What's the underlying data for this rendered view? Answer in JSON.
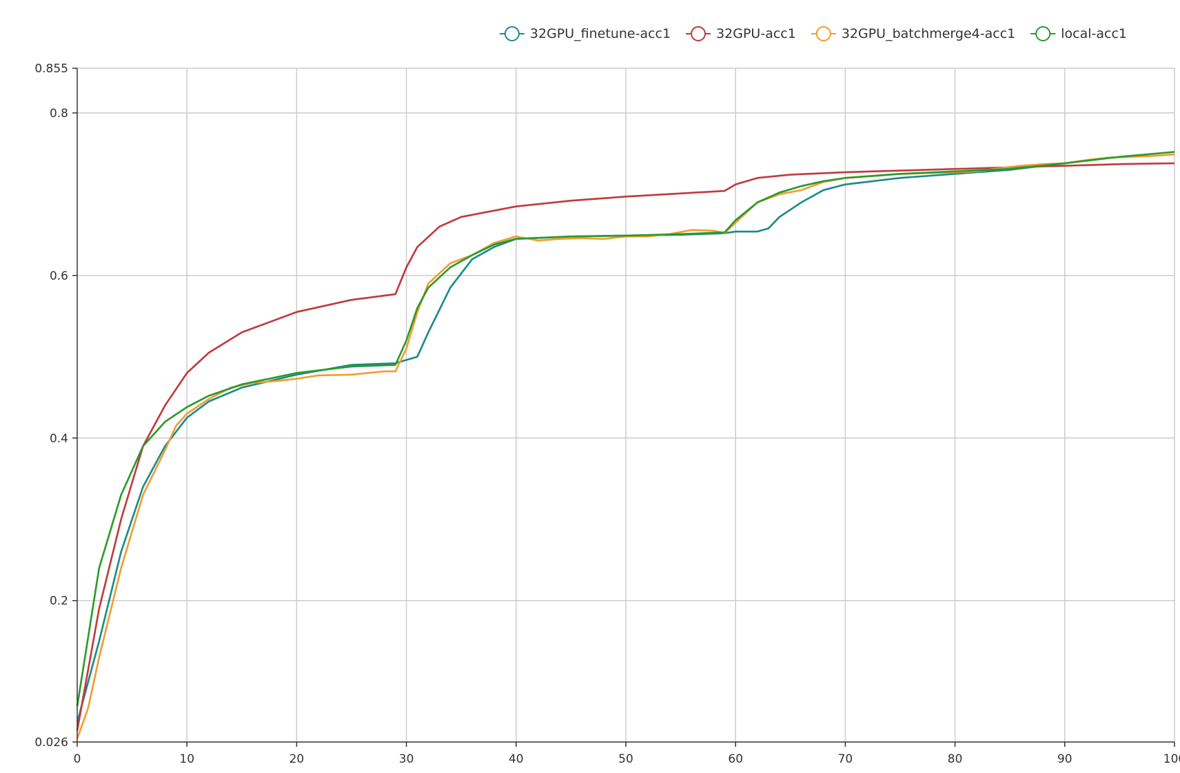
{
  "chart_data": {
    "type": "line",
    "title": "",
    "xlabel": "",
    "ylabel": "",
    "xlim": [
      0,
      100
    ],
    "ylim": [
      0.026,
      0.855
    ],
    "grid": true,
    "legend_position": "top-right",
    "x_ticks": [
      "0",
      "10",
      "20",
      "30",
      "40",
      "50",
      "60",
      "70",
      "80",
      "90",
      "100"
    ],
    "y_ticks": [
      "0.026",
      "0.2",
      "0.4",
      "0.6",
      "0.8",
      "0.855"
    ],
    "series": [
      {
        "name": "32GPU_finetune-acc1",
        "color": "#1a8a8a",
        "points": [
          [
            0,
            0.05
          ],
          [
            2,
            0.15
          ],
          [
            4,
            0.26
          ],
          [
            6,
            0.34
          ],
          [
            8,
            0.39
          ],
          [
            10,
            0.425
          ],
          [
            12,
            0.445
          ],
          [
            15,
            0.462
          ],
          [
            20,
            0.478
          ],
          [
            25,
            0.49
          ],
          [
            29,
            0.492
          ],
          [
            31,
            0.5
          ],
          [
            32,
            0.53
          ],
          [
            34,
            0.585
          ],
          [
            36,
            0.62
          ],
          [
            38,
            0.635
          ],
          [
            40,
            0.645
          ],
          [
            45,
            0.648
          ],
          [
            50,
            0.649
          ],
          [
            55,
            0.65
          ],
          [
            59,
            0.652
          ],
          [
            60,
            0.654
          ],
          [
            62,
            0.654
          ],
          [
            63,
            0.658
          ],
          [
            64,
            0.672
          ],
          [
            66,
            0.69
          ],
          [
            68,
            0.705
          ],
          [
            70,
            0.712
          ],
          [
            75,
            0.72
          ],
          [
            80,
            0.725
          ],
          [
            85,
            0.73
          ],
          [
            88,
            0.735
          ],
          [
            90,
            0.735
          ]
        ]
      },
      {
        "name": "32GPU-acc1",
        "color": "#c0393b",
        "points": [
          [
            0,
            0.04
          ],
          [
            2,
            0.19
          ],
          [
            4,
            0.3
          ],
          [
            6,
            0.39
          ],
          [
            8,
            0.44
          ],
          [
            10,
            0.48
          ],
          [
            12,
            0.505
          ],
          [
            15,
            0.53
          ],
          [
            20,
            0.555
          ],
          [
            25,
            0.57
          ],
          [
            29,
            0.577
          ],
          [
            30,
            0.61
          ],
          [
            31,
            0.635
          ],
          [
            33,
            0.66
          ],
          [
            35,
            0.672
          ],
          [
            40,
            0.685
          ],
          [
            45,
            0.692
          ],
          [
            50,
            0.697
          ],
          [
            55,
            0.701
          ],
          [
            59,
            0.704
          ],
          [
            60,
            0.712
          ],
          [
            62,
            0.72
          ],
          [
            65,
            0.724
          ],
          [
            70,
            0.727
          ],
          [
            75,
            0.729
          ],
          [
            80,
            0.731
          ],
          [
            85,
            0.733
          ],
          [
            90,
            0.735
          ],
          [
            95,
            0.737
          ],
          [
            100,
            0.738
          ]
        ]
      },
      {
        "name": "32GPU_batchmerge4-acc1",
        "color": "#f29c2f",
        "points": [
          [
            0,
            0.03
          ],
          [
            1,
            0.068
          ],
          [
            2,
            0.13
          ],
          [
            4,
            0.24
          ],
          [
            6,
            0.33
          ],
          [
            8,
            0.385
          ],
          [
            9,
            0.415
          ],
          [
            10,
            0.43
          ],
          [
            12,
            0.448
          ],
          [
            14,
            0.462
          ],
          [
            16,
            0.468
          ],
          [
            18,
            0.47
          ],
          [
            20,
            0.473
          ],
          [
            22,
            0.477
          ],
          [
            25,
            0.478
          ],
          [
            28,
            0.482
          ],
          [
            29,
            0.482
          ],
          [
            30,
            0.51
          ],
          [
            31,
            0.555
          ],
          [
            32,
            0.59
          ],
          [
            34,
            0.615
          ],
          [
            36,
            0.625
          ],
          [
            38,
            0.64
          ],
          [
            40,
            0.648
          ],
          [
            42,
            0.643
          ],
          [
            44,
            0.645
          ],
          [
            46,
            0.646
          ],
          [
            48,
            0.645
          ],
          [
            50,
            0.648
          ],
          [
            52,
            0.648
          ],
          [
            54,
            0.651
          ],
          [
            56,
            0.656
          ],
          [
            58,
            0.655
          ],
          [
            59,
            0.652
          ],
          [
            60,
            0.665
          ],
          [
            62,
            0.69
          ],
          [
            64,
            0.7
          ],
          [
            66,
            0.705
          ],
          [
            68,
            0.715
          ],
          [
            70,
            0.72
          ],
          [
            75,
            0.725
          ],
          [
            80,
            0.727
          ],
          [
            82,
            0.728
          ],
          [
            84,
            0.732
          ],
          [
            86,
            0.735
          ],
          [
            88,
            0.737
          ],
          [
            90,
            0.738
          ],
          [
            92,
            0.742
          ],
          [
            94,
            0.745
          ],
          [
            96,
            0.746
          ],
          [
            98,
            0.747
          ],
          [
            100,
            0.749
          ]
        ]
      },
      {
        "name": "local-acc1",
        "color": "#2a9a2a",
        "points": [
          [
            0,
            0.07
          ],
          [
            2,
            0.24
          ],
          [
            4,
            0.33
          ],
          [
            6,
            0.39
          ],
          [
            8,
            0.42
          ],
          [
            10,
            0.438
          ],
          [
            12,
            0.452
          ],
          [
            15,
            0.466
          ],
          [
            20,
            0.48
          ],
          [
            25,
            0.488
          ],
          [
            29,
            0.49
          ],
          [
            30,
            0.52
          ],
          [
            31,
            0.56
          ],
          [
            32,
            0.585
          ],
          [
            34,
            0.61
          ],
          [
            36,
            0.625
          ],
          [
            38,
            0.638
          ],
          [
            40,
            0.645
          ],
          [
            45,
            0.648
          ],
          [
            50,
            0.649
          ],
          [
            55,
            0.651
          ],
          [
            59,
            0.653
          ],
          [
            60,
            0.668
          ],
          [
            62,
            0.69
          ],
          [
            64,
            0.702
          ],
          [
            66,
            0.71
          ],
          [
            68,
            0.716
          ],
          [
            70,
            0.72
          ],
          [
            75,
            0.725
          ],
          [
            80,
            0.728
          ],
          [
            85,
            0.731
          ],
          [
            90,
            0.738
          ],
          [
            95,
            0.746
          ],
          [
            100,
            0.752
          ]
        ]
      }
    ]
  }
}
